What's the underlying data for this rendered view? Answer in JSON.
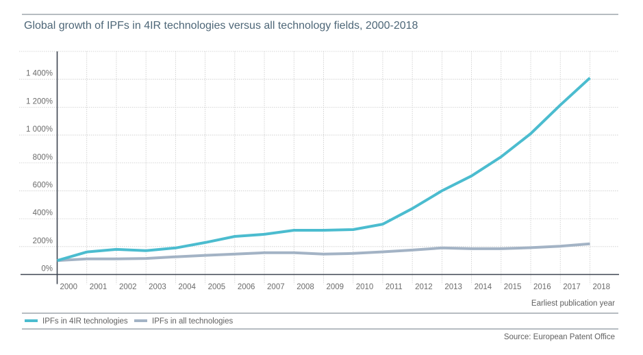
{
  "chart_data": {
    "type": "line",
    "title": "Global growth of IPFs in 4IR technologies versus all technology fields, 2000-2018",
    "xlabel": "Earliest publication year",
    "ylabel": "",
    "x": [
      "2000",
      "2001",
      "2002",
      "2003",
      "2004",
      "2005",
      "2006",
      "2007",
      "2008",
      "2009",
      "2010",
      "2011",
      "2012",
      "2013",
      "2014",
      "2015",
      "2016",
      "2017",
      "2018"
    ],
    "yticks": [
      0,
      200,
      400,
      600,
      800,
      1000,
      1200,
      1400
    ],
    "ytick_labels": [
      "0%",
      "200%",
      "400%",
      "600%",
      "800%",
      "1 000%",
      "1 200%",
      "1 400%"
    ],
    "ylim": [
      0,
      1600
    ],
    "grid": true,
    "legend_position": "bottom-left",
    "series": [
      {
        "name": "IPFs in 4IR technologies",
        "color": "#4bbccf",
        "values": [
          100,
          161,
          180,
          171,
          190,
          229,
          273,
          288,
          317,
          317,
          322,
          361,
          473,
          600,
          707,
          844,
          1010,
          1215,
          1410
        ]
      },
      {
        "name": "IPFs in all technologies",
        "color": "#a3b3c5",
        "values": [
          100,
          112,
          112,
          115,
          127,
          137,
          146,
          156,
          156,
          146,
          151,
          162,
          175,
          190,
          185,
          185,
          192,
          203,
          220
        ]
      }
    ],
    "source": "Source: European Patent Office"
  }
}
